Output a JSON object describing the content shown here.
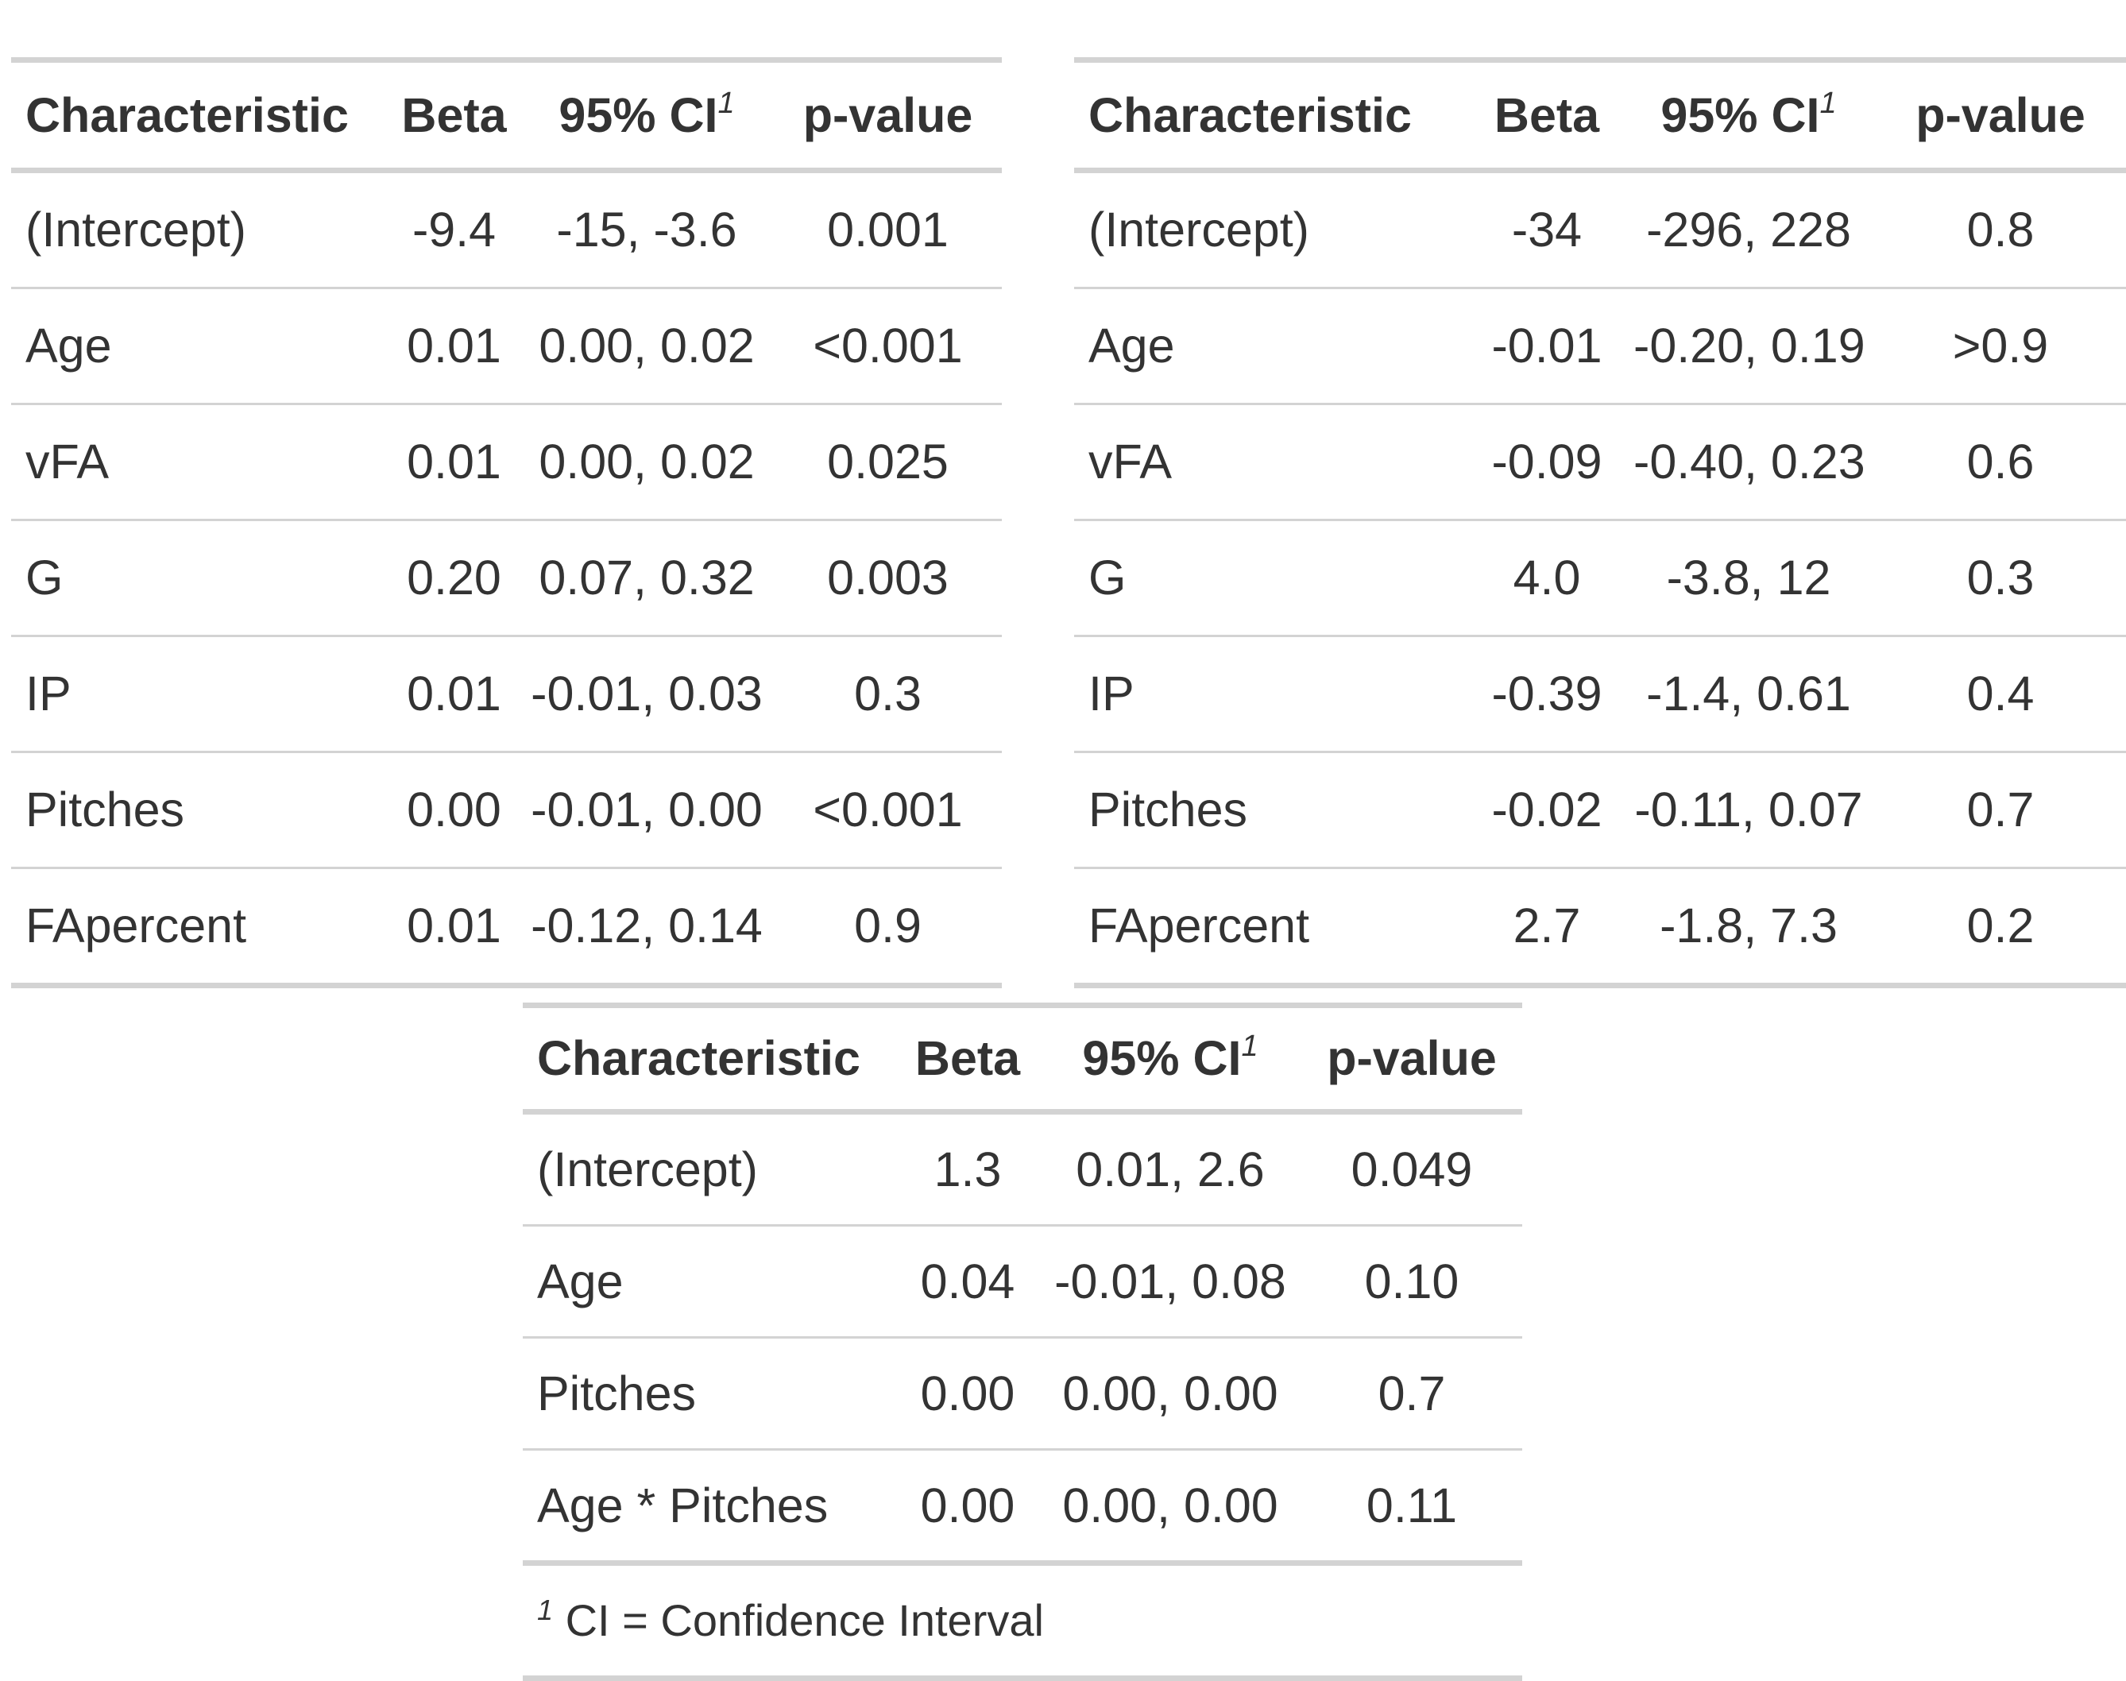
{
  "tables": [
    {
      "headers": {
        "characteristic": "Characteristic",
        "beta": "Beta",
        "ci": "95% CI",
        "ci_footnote_mark": "1",
        "pvalue": "p-value"
      },
      "rows": [
        {
          "label": "(Intercept)",
          "beta": "-9.4",
          "ci": "-15, -3.6",
          "p": "0.001"
        },
        {
          "label": "Age",
          "beta": "0.01",
          "ci": "0.00, 0.02",
          "p": "<0.001"
        },
        {
          "label": "vFA",
          "beta": "0.01",
          "ci": "0.00, 0.02",
          "p": "0.025"
        },
        {
          "label": "G",
          "beta": "0.20",
          "ci": "0.07, 0.32",
          "p": "0.003"
        },
        {
          "label": "IP",
          "beta": "0.01",
          "ci": "-0.01, 0.03",
          "p": "0.3"
        },
        {
          "label": "Pitches",
          "beta": "0.00",
          "ci": "-0.01, 0.00",
          "p": "<0.001"
        },
        {
          "label": "FApercent",
          "beta": "0.01",
          "ci": "-0.12, 0.14",
          "p": "0.9"
        }
      ]
    },
    {
      "headers": {
        "characteristic": "Characteristic",
        "beta": "Beta",
        "ci": "95% CI",
        "ci_footnote_mark": "1",
        "pvalue": "p-value"
      },
      "rows": [
        {
          "label": "(Intercept)",
          "beta": "-34",
          "ci": "-296, 228",
          "p": "0.8"
        },
        {
          "label": "Age",
          "beta": "-0.01",
          "ci": "-0.20, 0.19",
          "p": ">0.9"
        },
        {
          "label": "vFA",
          "beta": "-0.09",
          "ci": "-0.40, 0.23",
          "p": "0.6"
        },
        {
          "label": "G",
          "beta": "4.0",
          "ci": "-3.8, 12",
          "p": "0.3"
        },
        {
          "label": "IP",
          "beta": "-0.39",
          "ci": "-1.4, 0.61",
          "p": "0.4"
        },
        {
          "label": "Pitches",
          "beta": "-0.02",
          "ci": "-0.11, 0.07",
          "p": "0.7"
        },
        {
          "label": "FApercent",
          "beta": "2.7",
          "ci": "-1.8, 7.3",
          "p": "0.2"
        }
      ]
    },
    {
      "headers": {
        "characteristic": "Characteristic",
        "beta": "Beta",
        "ci": "95% CI",
        "ci_footnote_mark": "1",
        "pvalue": "p-value"
      },
      "rows": [
        {
          "label": "(Intercept)",
          "beta": "1.3",
          "ci": "0.01, 2.6",
          "p": "0.049"
        },
        {
          "label": "Age",
          "beta": "0.04",
          "ci": "-0.01, 0.08",
          "p": "0.10"
        },
        {
          "label": "Pitches",
          "beta": "0.00",
          "ci": "0.00, 0.00",
          "p": "0.7"
        },
        {
          "label": "Age * Pitches",
          "beta": "0.00",
          "ci": "0.00, 0.00",
          "p": "0.11"
        }
      ],
      "footnote": {
        "mark": "1",
        "text": "CI = Confidence Interval"
      }
    }
  ]
}
